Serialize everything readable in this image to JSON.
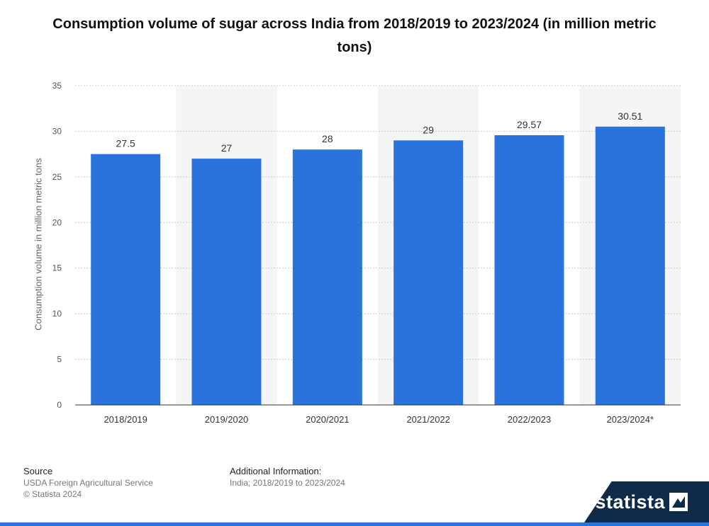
{
  "title": "Consumption volume of sugar across India from 2018/2019 to 2023/2024 (in million metric tons)",
  "source": {
    "heading": "Source",
    "line1": "USDA Foreign Agricultural Service",
    "line2": "© Statista 2024"
  },
  "additional_info": {
    "heading": "Additional Information:",
    "text": "India; 2018/2019 to 2023/2024"
  },
  "brand": {
    "name": "statista",
    "icon": "statista-logo-icon"
  },
  "colors": {
    "bar": "#2a73dd",
    "band": "#f5f5f5",
    "axis": "#333333",
    "grid": "#cccccc",
    "accent": "#2876dd"
  },
  "chart_data": {
    "type": "bar",
    "title": "Consumption volume of sugar across India from 2018/2019 to 2023/2024 (in million metric tons)",
    "categories": [
      "2018/2019",
      "2019/2020",
      "2020/2021",
      "2021/2022",
      "2022/2023",
      "2023/2024*"
    ],
    "values": [
      27.5,
      27,
      28,
      29,
      29.57,
      30.51
    ],
    "labels": [
      "27.5",
      "27",
      "28",
      "29",
      "29.57",
      "30.51"
    ],
    "xlabel": "",
    "ylabel": "Consumption volume in million metric tons",
    "ylim": [
      0,
      35
    ],
    "yticks": [
      0,
      5,
      10,
      15,
      20,
      25,
      30,
      35
    ],
    "grid": true
  }
}
